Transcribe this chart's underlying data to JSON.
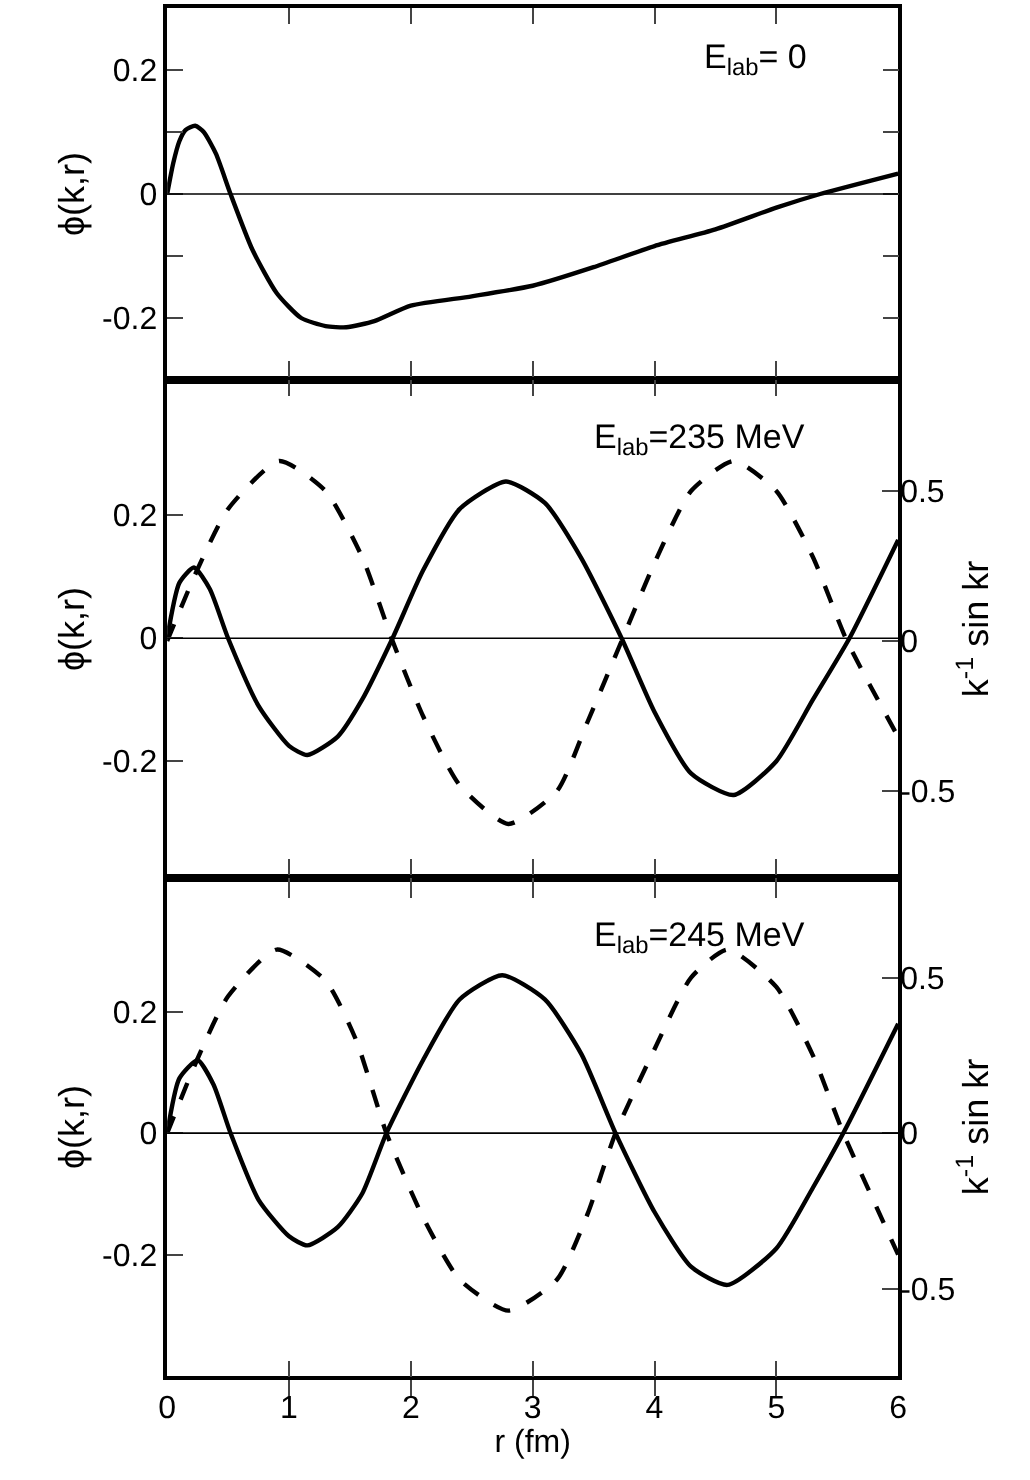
{
  "chart_data": [
    {
      "type": "line",
      "annotations": [
        "E$_{lab}$= 0"
      ],
      "ylabel": "ϕ(k,r)",
      "xlim": [
        0,
        6
      ],
      "xticks": [
        0,
        1,
        2,
        3,
        4,
        5,
        6
      ],
      "ylim": [
        -0.3,
        0.3
      ],
      "yticks": [
        {
          "value": -0.2,
          "label": "-0.2"
        },
        {
          "value": -0.1,
          "label": null
        },
        0,
        {
          "value": 0.1,
          "label": null
        },
        0.2
      ],
      "tick_labels": "y",
      "line_style": "solid",
      "ref_lines": [
        {
          "axis": "y",
          "value": 0
        }
      ],
      "series": [
        {
          "color": "#000000",
          "x": [
            0,
            0.05,
            0.1,
            0.15,
            0.23,
            0.3,
            0.4,
            0.52,
            0.7,
            0.9,
            1.1,
            1.3,
            1.47,
            1.7,
            2,
            2.5,
            3,
            3.5,
            4,
            4.5,
            5,
            5.36,
            6
          ],
          "values": [
            0,
            0.05,
            0.085,
            0.103,
            0.11,
            0.1,
            0.065,
            0,
            -0.09,
            -0.16,
            -0.2,
            -0.213,
            -0.215,
            -0.205,
            -0.18,
            -0.165,
            -0.148,
            -0.118,
            -0.084,
            -0.057,
            -0.022,
            0,
            0.033
          ]
        }
      ]
    },
    {
      "type": "line",
      "annotations": [
        "E$_{lab}$=235 MeV"
      ],
      "ylabel": "ϕ(k,r)",
      "y2label": "k$^{-1}$ sin kr",
      "xlim": [
        0,
        6
      ],
      "xticks": [
        0,
        1,
        2,
        3,
        4,
        5,
        6
      ],
      "ylim": [
        -0.39,
        0.42
      ],
      "yticks": [
        {
          "value": -0.2,
          "label": "-0.2"
        },
        0,
        0.2
      ],
      "y2lim": [
        -0.79,
        0.87
      ],
      "y2ticks": [
        {
          "value": -0.5,
          "label": "-0.5"
        },
        0,
        0.5
      ],
      "tick_labels": "y",
      "ref_lines": [
        {
          "axis": "y",
          "value": 0
        }
      ],
      "series": [
        {
          "color": "#000000",
          "line_style": "solid",
          "x": [
            0,
            0.1,
            0.22,
            0.35,
            0.5,
            0.75,
            1,
            1.15,
            1.4,
            1.6,
            1.85,
            2.1,
            2.4,
            2.78,
            3.1,
            3.4,
            3.73,
            4,
            4.3,
            4.65,
            5,
            5.3,
            5.6,
            6
          ],
          "values": [
            0,
            0.09,
            0.115,
            0.08,
            0,
            -0.11,
            -0.175,
            -0.19,
            -0.16,
            -0.1,
            0,
            0.11,
            0.21,
            0.255,
            0.22,
            0.13,
            0,
            -0.12,
            -0.22,
            -0.255,
            -0.2,
            -0.1,
            0,
            0.16
          ]
        },
        {
          "color": "#000000",
          "line_style": "dashed",
          "axis": "y2",
          "x": [
            0,
            0.25,
            0.5,
            0.92,
            1.3,
            1.6,
            1.85,
            2.1,
            2.4,
            2.8,
            3.2,
            3.45,
            3.73,
            4,
            4.3,
            4.65,
            5,
            5.3,
            5.58,
            6
          ],
          "values": [
            0,
            0.24,
            0.44,
            0.6,
            0.5,
            0.28,
            0,
            -0.25,
            -0.48,
            -0.61,
            -0.5,
            -0.27,
            0,
            0.26,
            0.5,
            0.6,
            0.5,
            0.28,
            0,
            -0.32
          ]
        }
      ]
    },
    {
      "type": "line",
      "annotations": [
        "E$_{lab}$=245 MeV"
      ],
      "xlabel": "r (fm)",
      "ylabel": "ϕ(k,r)",
      "y2label": "k$^{-1}$ sin kr",
      "xlim": [
        0,
        6
      ],
      "xticks": [
        0,
        1,
        2,
        3,
        4,
        5,
        6
      ],
      "ylim": [
        -0.4,
        0.42
      ],
      "yticks": [
        {
          "value": -0.2,
          "label": "-0.2"
        },
        0,
        0.2
      ],
      "y2lim": [
        -0.78,
        0.82
      ],
      "y2ticks": [
        {
          "value": -0.5,
          "label": "-0.5"
        },
        0,
        0.5
      ],
      "ref_lines": [
        {
          "axis": "y",
          "value": 0
        }
      ],
      "series": [
        {
          "color": "#000000",
          "line_style": "solid",
          "x": [
            0,
            0.1,
            0.25,
            0.38,
            0.52,
            0.75,
            1,
            1.15,
            1.4,
            1.6,
            1.8,
            2.1,
            2.4,
            2.75,
            3.1,
            3.4,
            3.68,
            4,
            4.3,
            4.6,
            5,
            5.3,
            5.55,
            6
          ],
          "values": [
            0,
            0.09,
            0.12,
            0.08,
            0,
            -0.11,
            -0.17,
            -0.185,
            -0.155,
            -0.1,
            0,
            0.12,
            0.22,
            0.26,
            0.22,
            0.13,
            0,
            -0.13,
            -0.22,
            -0.25,
            -0.19,
            -0.09,
            0,
            0.18
          ]
        },
        {
          "color": "#000000",
          "line_style": "dashed",
          "axis": "y2",
          "x": [
            0,
            0.25,
            0.5,
            0.9,
            1.3,
            1.55,
            1.8,
            2.1,
            2.4,
            2.8,
            3.2,
            3.45,
            3.68,
            4,
            4.3,
            4.6,
            5,
            5.3,
            5.55,
            6
          ],
          "values": [
            0,
            0.24,
            0.44,
            0.59,
            0.49,
            0.3,
            0,
            -0.27,
            -0.47,
            -0.57,
            -0.47,
            -0.26,
            0,
            0.27,
            0.5,
            0.59,
            0.47,
            0.25,
            0,
            -0.39
          ]
        }
      ]
    }
  ]
}
